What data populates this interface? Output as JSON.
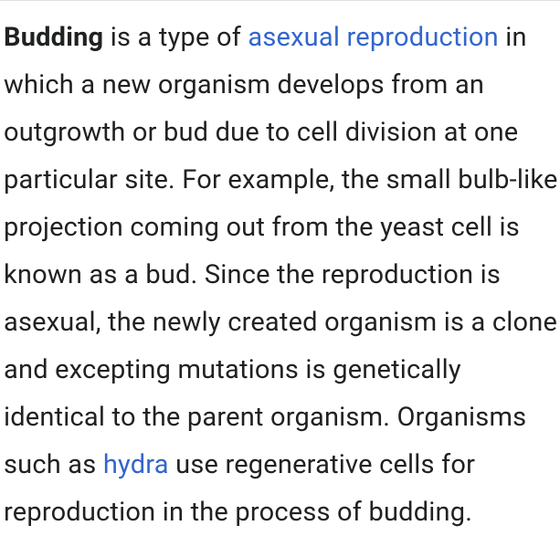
{
  "article": {
    "term": "Budding",
    "text1": " is a type of ",
    "link1": "asexual reproduction",
    "text2": " in which a new organism develops from an outgrowth or bud due to cell division at one particular site. For example, the small bulb-like projection coming out from the yeast cell is known as a bud. Since the reproduction is asexual, the newly created organism is a clone and excepting mutations is genetically identical to the parent organism. Organisms such as ",
    "link2": "hydra",
    "text3": " use regenerative cells for reproduction in the process of budding."
  },
  "styling": {
    "text_color": "#202122",
    "link_color": "#3366cc",
    "background_color": "#ffffff",
    "font_size": 29,
    "line_height": 52,
    "border_color": "#e0e0e0"
  }
}
